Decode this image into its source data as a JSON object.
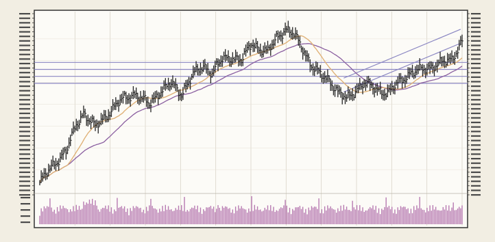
{
  "chart_data": {
    "type": "line",
    "title": "",
    "xlabel": "",
    "ylabel": "",
    "grid": true,
    "legend": "none",
    "months": [
      "",
      "",
      "",
      "",
      "",
      "",
      "",
      "",
      "",
      "",
      "",
      ""
    ],
    "n_sessions": 290,
    "ylim": [
      0,
      100
    ],
    "price_anchors": [
      [
        0,
        5
      ],
      [
        8,
        14
      ],
      [
        18,
        23
      ],
      [
        25,
        38
      ],
      [
        30,
        45
      ],
      [
        38,
        37
      ],
      [
        45,
        43
      ],
      [
        55,
        52
      ],
      [
        65,
        56
      ],
      [
        75,
        50
      ],
      [
        82,
        57
      ],
      [
        90,
        62
      ],
      [
        97,
        56
      ],
      [
        105,
        67
      ],
      [
        112,
        72
      ],
      [
        118,
        68
      ],
      [
        125,
        76
      ],
      [
        132,
        77
      ],
      [
        138,
        75
      ],
      [
        145,
        85
      ],
      [
        150,
        82
      ],
      [
        156,
        80
      ],
      [
        162,
        88
      ],
      [
        168,
        93
      ],
      [
        174,
        90
      ],
      [
        180,
        82
      ],
      [
        186,
        72
      ],
      [
        192,
        67
      ],
      [
        198,
        64
      ],
      [
        204,
        57
      ],
      [
        210,
        53
      ],
      [
        216,
        58
      ],
      [
        222,
        62
      ],
      [
        230,
        59
      ],
      [
        238,
        56
      ],
      [
        246,
        63
      ],
      [
        254,
        68
      ],
      [
        262,
        70
      ],
      [
        270,
        72
      ],
      [
        276,
        74
      ],
      [
        282,
        76
      ],
      [
        287,
        83
      ],
      [
        290,
        88
      ]
    ],
    "series": [
      {
        "values": [],
        "color": "#222222"
      },
      {
        "values": [],
        "color": "#e0b278"
      },
      {
        "values": [],
        "color": "#8a5ea0"
      }
    ],
    "reference_lines": [
      {
        "y": 74,
        "color": "#8a86c2"
      },
      {
        "y": 70,
        "color": "#8a86c2"
      },
      {
        "y": 66,
        "color": "#8a86c2"
      },
      {
        "y": 62,
        "color": "#8a86c2"
      }
    ],
    "trend_channel": {
      "from": [
        208,
        57
      ],
      "to": [
        288,
        85
      ],
      "width": 8,
      "color": "#8a86c2"
    },
    "volume": {
      "values": [],
      "color": "#b77ab1"
    }
  }
}
